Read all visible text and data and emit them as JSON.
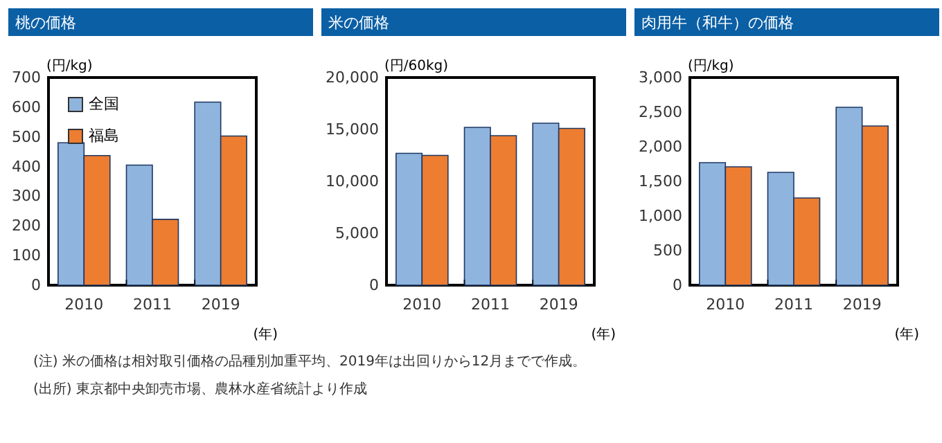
{
  "chart_data": [
    {
      "type": "bar",
      "title": "桃の価格",
      "ylabel": "(円/kg)",
      "xlabel": "(年)",
      "categories": [
        "2010",
        "2011",
        "2019"
      ],
      "series": [
        {
          "name": "全国",
          "color": "#8fb4de",
          "values": [
            480,
            405,
            617
          ]
        },
        {
          "name": "福島",
          "color": "#ed7d31",
          "values": [
            437,
            222,
            503
          ]
        }
      ],
      "ylim": [
        0,
        700
      ],
      "yticks": [
        0,
        100,
        200,
        300,
        400,
        500,
        600,
        700
      ],
      "legend": "top left",
      "annotations": [
        "(注) 米の価格は相対取引価格の品種別加重平均、2019年は出回りから12月までで作成。",
        "(出所) 東京都中央卸売市場、農林水産省統計より作成"
      ]
    },
    {
      "type": "bar",
      "title": "米の価格",
      "ylabel": "(円/60kg)",
      "xlabel": "(年)",
      "categories": [
        "2010",
        "2011",
        "2019"
      ],
      "series": [
        {
          "color": "#8fb4de",
          "values": [
            12700,
            15200,
            15600
          ]
        },
        {
          "color": "#ed7d31",
          "values": [
            12500,
            14400,
            15100
          ]
        }
      ],
      "ylim": [
        0,
        20000
      ],
      "yticks": [
        0,
        {
          "value": 5000,
          "label": "5,000"
        },
        {
          "value": 10000,
          "label": "10,000"
        },
        {
          "value": 15000,
          "label": "15,000"
        },
        {
          "value": 20000,
          "label": "20,000"
        }
      ]
    },
    {
      "type": "bar",
      "title": "肉用牛（和牛）の価格",
      "ylabel": "(円/kg)",
      "xlabel": "(年)",
      "categories": [
        "2010",
        "2011",
        "2019"
      ],
      "series": [
        {
          "color": "#8fb4de",
          "values": [
            1770,
            1630,
            2570
          ]
        },
        {
          "color": "#ed7d31",
          "values": [
            1710,
            1260,
            2300
          ]
        }
      ],
      "ylim": [
        0,
        3000
      ],
      "yticks": [
        0,
        500,
        {
          "value": 1000,
          "label": "1,000"
        },
        {
          "value": 1500,
          "label": "1,500"
        },
        {
          "value": 2000,
          "label": "2,000"
        },
        {
          "value": 2500,
          "label": "2,500"
        },
        {
          "value": 3000,
          "label": "3,000"
        }
      ]
    }
  ]
}
